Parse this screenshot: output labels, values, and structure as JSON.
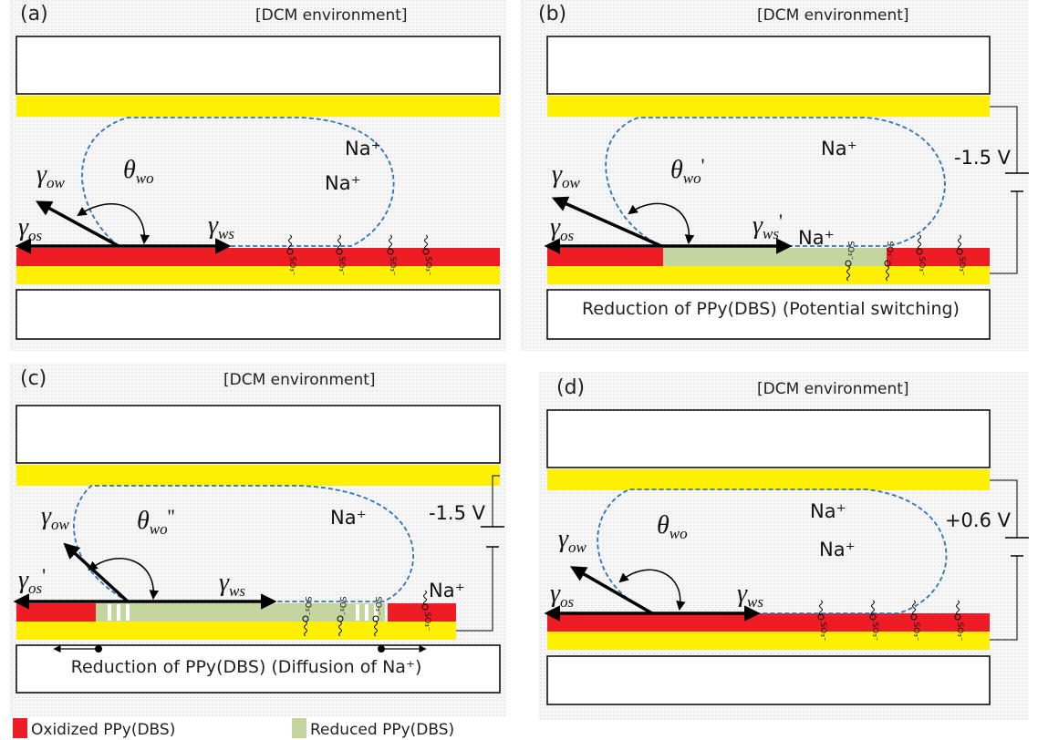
{
  "panels": [
    {
      "label": "(a)",
      "environment": "[DCM environment]",
      "ions": [
        "Na⁺",
        "Na⁺"
      ],
      "angle": {
        "symbol": "θ",
        "sub": "wo"
      },
      "tensions": {
        "ow": {
          "symbol": "γ",
          "sub": "ow"
        },
        "os": {
          "symbol": "γ",
          "sub": "os"
        },
        "ws": {
          "symbol": "γ",
          "sub": "ws"
        }
      }
    },
    {
      "label": "(b)",
      "environment": "[DCM environment]",
      "ions": [
        "Na⁺",
        "Na⁺"
      ],
      "angle": {
        "symbol": "θ",
        "sub": "wo",
        "prime": "'"
      },
      "tensions": {
        "ow": {
          "symbol": "γ",
          "sub": "ow"
        },
        "os": {
          "symbol": "γ",
          "sub": "os"
        },
        "ws": {
          "symbol": "γ",
          "sub": "ws",
          "prime": "'"
        }
      },
      "voltage": "-1.5 V",
      "caption": "Reduction of PPy(DBS) (Potential switching)"
    },
    {
      "label": "(c)",
      "environment": "[DCM environment]",
      "ions": [
        "Na⁺",
        "Na⁺"
      ],
      "angle": {
        "symbol": "θ",
        "sub": "wo",
        "prime": "''"
      },
      "tensions": {
        "ow": {
          "symbol": "γ",
          "sub": "ow"
        },
        "os": {
          "symbol": "γ",
          "sub": "os",
          "prime": "'"
        },
        "ws": {
          "symbol": "γ",
          "sub": "ws"
        }
      },
      "voltage": "-1.5 V",
      "caption": "Reduction of PPy(DBS) (Diffusion of Na⁺)"
    },
    {
      "label": "(d)",
      "environment": "[DCM environment]",
      "ions": [
        "Na⁺",
        "Na⁺"
      ],
      "angle": {
        "symbol": "θ",
        "sub": "wo"
      },
      "tensions": {
        "ow": {
          "symbol": "γ",
          "sub": "ow"
        },
        "os": {
          "symbol": "γ",
          "sub": "os"
        },
        "ws": {
          "symbol": "γ",
          "sub": "ws"
        }
      },
      "voltage": "+0.6 V"
    }
  ],
  "sulfonate": "SO₃⁻",
  "legend": [
    {
      "label": "Oxidized PPy(DBS)"
    },
    {
      "label": "Reduced PPy(DBS)"
    }
  ]
}
